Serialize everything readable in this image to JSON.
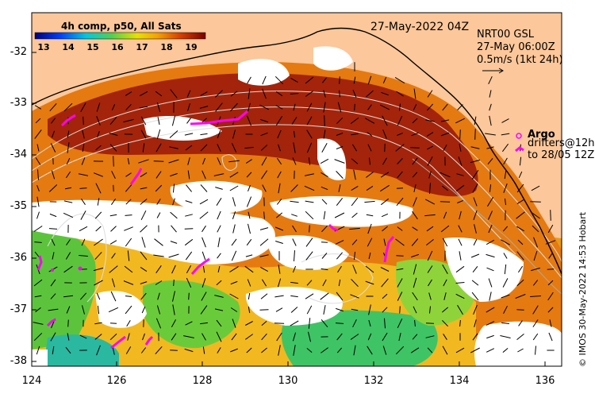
{
  "colorbar": {
    "title": "4h comp, p50, All Sats",
    "ticks": [
      "13",
      "14",
      "15",
      "16",
      "17",
      "18",
      "19"
    ]
  },
  "header": {
    "date": "27-May-2022 04Z",
    "model": "NRT00 GSL",
    "valid": "27-May 06:00Z",
    "scale": "0.5m/s (1kt 24h)"
  },
  "legend": {
    "argo": "Argo",
    "drifters": "drifters@12h",
    "drifters_to": "to 28/05 12Z"
  },
  "axes": {
    "y_ticks": [
      "-32",
      "-33",
      "-34",
      "-35",
      "-36",
      "-37",
      "-38"
    ],
    "x_ticks": [
      "124",
      "126",
      "128",
      "130",
      "132",
      "134",
      "136"
    ]
  },
  "credit": "© IMOS 30-May-2022 14:53 Hobart",
  "colors": {
    "land": "#fcc79a",
    "no_data": "#ffffff",
    "warm": "#9a1e0a",
    "mid": "#e07a10",
    "cool": "#6cc83a",
    "argo": "#ff00ff"
  }
}
